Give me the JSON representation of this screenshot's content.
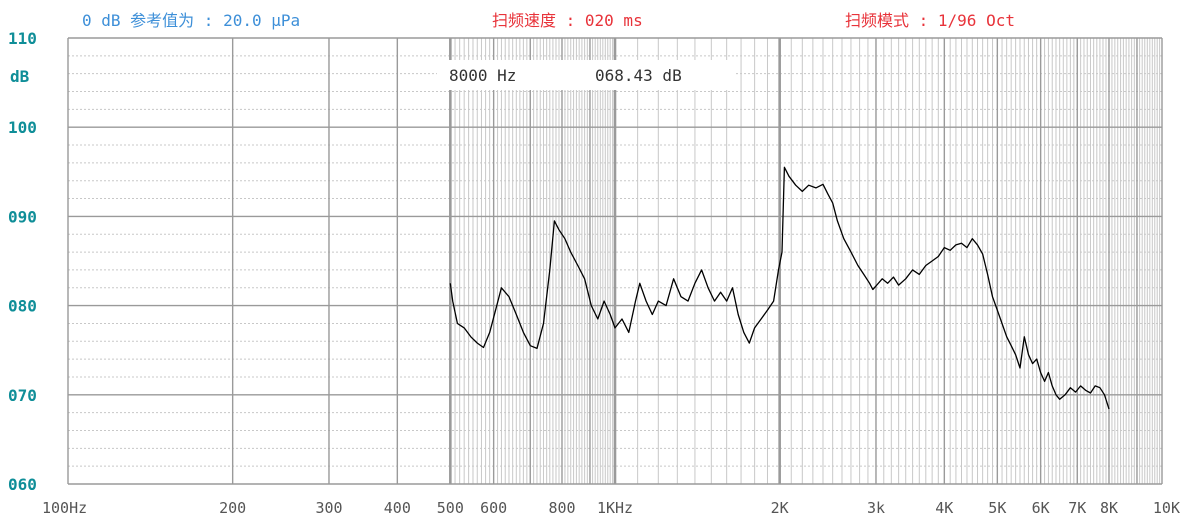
{
  "header": {
    "ref_label": "0 dB 参考值为 : 20.0 μPa",
    "speed_label": "扫频速度 : 020 ms",
    "mode_label": "扫频模式 : 1/96 Oct"
  },
  "colors": {
    "ref": "#3d8fd8",
    "speed": "#e8333a",
    "ylabel": "#0f8e98",
    "grid_major": "#9a9a9a",
    "grid_minor": "#c8c8c8",
    "trace": "#000000",
    "xlabel": "#555555"
  },
  "readout": {
    "freq": "8000 Hz",
    "level": "068.43 dB"
  },
  "chart_data": {
    "type": "line",
    "xscale": "log",
    "xlim": [
      100,
      10000
    ],
    "ylim": [
      60,
      110
    ],
    "ylabel": "dB",
    "ytick_labels": [
      "060",
      "070",
      "080",
      "090",
      "100",
      "110"
    ],
    "xtick_labels": [
      {
        "f": 100,
        "label": "100Hz"
      },
      {
        "f": 200,
        "label": "200"
      },
      {
        "f": 300,
        "label": "300"
      },
      {
        "f": 400,
        "label": "400"
      },
      {
        "f": 500,
        "label": "500"
      },
      {
        "f": 600,
        "label": "600"
      },
      {
        "f": 800,
        "label": "800"
      },
      {
        "f": 1000,
        "label": "1KHz"
      },
      {
        "f": 2000,
        "label": "2K"
      },
      {
        "f": 3000,
        "label": "3k"
      },
      {
        "f": 4000,
        "label": "4K"
      },
      {
        "f": 5000,
        "label": "5K"
      },
      {
        "f": 6000,
        "label": "6K"
      },
      {
        "f": 7000,
        "label": "7K"
      },
      {
        "f": 8000,
        "label": "8K"
      },
      {
        "f": 10000,
        "label": "10K"
      }
    ],
    "series": [
      {
        "values": [
          [
            500,
            82.5
          ],
          [
            505,
            80.5
          ],
          [
            515,
            78
          ],
          [
            530,
            77.5
          ],
          [
            545,
            76.5
          ],
          [
            560,
            75.8
          ],
          [
            575,
            75.3
          ],
          [
            590,
            77
          ],
          [
            605,
            79.5
          ],
          [
            620,
            82
          ],
          [
            640,
            81
          ],
          [
            660,
            79
          ],
          [
            680,
            77
          ],
          [
            700,
            75.5
          ],
          [
            720,
            75.2
          ],
          [
            740,
            78
          ],
          [
            760,
            84
          ],
          [
            775,
            89.5
          ],
          [
            790,
            88.5
          ],
          [
            810,
            87.5
          ],
          [
            830,
            86
          ],
          [
            855,
            84.5
          ],
          [
            880,
            83
          ],
          [
            905,
            80
          ],
          [
            930,
            78.5
          ],
          [
            955,
            80.5
          ],
          [
            980,
            79
          ],
          [
            1000,
            77.5
          ],
          [
            1030,
            78.5
          ],
          [
            1060,
            77
          ],
          [
            1090,
            80.5
          ],
          [
            1110,
            82.5
          ],
          [
            1140,
            80.5
          ],
          [
            1170,
            79
          ],
          [
            1200,
            80.5
          ],
          [
            1240,
            80
          ],
          [
            1280,
            83
          ],
          [
            1320,
            81
          ],
          [
            1360,
            80.5
          ],
          [
            1400,
            82.5
          ],
          [
            1440,
            84
          ],
          [
            1480,
            82
          ],
          [
            1520,
            80.5
          ],
          [
            1560,
            81.5
          ],
          [
            1600,
            80.5
          ],
          [
            1640,
            82
          ],
          [
            1680,
            79
          ],
          [
            1720,
            77
          ],
          [
            1760,
            75.8
          ],
          [
            1800,
            77.5
          ],
          [
            1850,
            78.5
          ],
          [
            1900,
            79.5
          ],
          [
            1950,
            80.5
          ],
          [
            1990,
            84
          ],
          [
            2020,
            86
          ],
          [
            2040,
            95.5
          ],
          [
            2080,
            94.5
          ],
          [
            2140,
            93.5
          ],
          [
            2200,
            92.8
          ],
          [
            2260,
            93.5
          ],
          [
            2330,
            93.2
          ],
          [
            2400,
            93.6
          ],
          [
            2450,
            92.5
          ],
          [
            2500,
            91.5
          ],
          [
            2550,
            89.5
          ],
          [
            2620,
            87.5
          ],
          [
            2700,
            86
          ],
          [
            2780,
            84.5
          ],
          [
            2850,
            83.5
          ],
          [
            2920,
            82.5
          ],
          [
            2960,
            81.8
          ],
          [
            3000,
            82.2
          ],
          [
            3080,
            83
          ],
          [
            3150,
            82.5
          ],
          [
            3230,
            83.2
          ],
          [
            3300,
            82.3
          ],
          [
            3400,
            83
          ],
          [
            3500,
            84
          ],
          [
            3600,
            83.5
          ],
          [
            3700,
            84.5
          ],
          [
            3800,
            85
          ],
          [
            3900,
            85.5
          ],
          [
            4000,
            86.5
          ],
          [
            4100,
            86.2
          ],
          [
            4200,
            86.8
          ],
          [
            4300,
            87
          ],
          [
            4400,
            86.5
          ],
          [
            4500,
            87.5
          ],
          [
            4600,
            86.8
          ],
          [
            4700,
            85.8
          ],
          [
            4800,
            83.5
          ],
          [
            4900,
            81
          ],
          [
            5000,
            79.5
          ],
          [
            5100,
            78
          ],
          [
            5200,
            76.5
          ],
          [
            5300,
            75.5
          ],
          [
            5400,
            74.5
          ],
          [
            5500,
            73
          ],
          [
            5600,
            76.5
          ],
          [
            5700,
            74.5
          ],
          [
            5800,
            73.5
          ],
          [
            5900,
            74
          ],
          [
            6000,
            72.5
          ],
          [
            6100,
            71.5
          ],
          [
            6200,
            72.5
          ],
          [
            6300,
            71
          ],
          [
            6400,
            70
          ],
          [
            6500,
            69.5
          ],
          [
            6650,
            70
          ],
          [
            6800,
            70.8
          ],
          [
            6950,
            70.3
          ],
          [
            7100,
            71
          ],
          [
            7250,
            70.5
          ],
          [
            7400,
            70.2
          ],
          [
            7550,
            71
          ],
          [
            7700,
            70.8
          ],
          [
            7850,
            70
          ],
          [
            8000,
            68.4
          ]
        ]
      }
    ]
  }
}
